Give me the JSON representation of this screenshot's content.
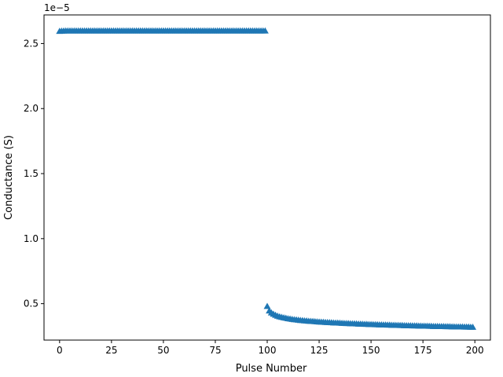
{
  "chart_data": {
    "type": "scatter",
    "title": "",
    "xlabel": "Pulse Number",
    "ylabel": "Conductance (S)",
    "y_offset_label": "1e−5",
    "y_scale_exponent": -5,
    "xlim": [
      -7.5,
      207.5
    ],
    "ylim": [
      2.2e-06,
      2.72e-05
    ],
    "xticks": [
      0,
      25,
      50,
      75,
      100,
      125,
      150,
      175,
      200
    ],
    "xtick_labels": [
      "0",
      "25",
      "50",
      "75",
      "100",
      "125",
      "150",
      "175",
      "200"
    ],
    "yticks": [
      5e-06,
      1e-05,
      1.5e-05,
      2e-05,
      2.5e-05
    ],
    "ytick_labels": [
      "0.5",
      "1.0",
      "1.5",
      "2.0",
      "2.5"
    ],
    "grid": false,
    "legend": "none",
    "marker": "triangle-up",
    "series": [
      {
        "name": "",
        "color": "#1f77b4",
        "potentiation": {
          "x_start": 0,
          "x_end": 99,
          "values": [
            2.595e-05,
            2.596e-05,
            2.597e-05,
            2.598e-05,
            2.598e-05,
            2.598e-05,
            2.598e-05,
            2.598e-05,
            2.598e-05,
            2.598e-05
          ],
          "plateau": 2.598e-05
        },
        "depression": {
          "x_start": 100,
          "x_end": 199,
          "values": [
            4.8e-06,
            4.45e-06,
            4.3e-06,
            4.2e-06,
            4.12e-06,
            4.05e-06,
            4e-06,
            3.96e-06,
            3.92e-06,
            3.89e-06,
            3.85e-06,
            3.83e-06,
            3.8e-06,
            3.78e-06,
            3.76e-06,
            3.74e-06,
            3.72e-06,
            3.71e-06,
            3.69e-06,
            3.68e-06,
            3.66e-06,
            3.65e-06,
            3.64e-06,
            3.63e-06,
            3.61e-06,
            3.6e-06,
            3.59e-06,
            3.58e-06,
            3.57e-06,
            3.56e-06,
            3.55e-06,
            3.54e-06,
            3.53e-06,
            3.52e-06,
            3.52e-06,
            3.51e-06,
            3.5e-06,
            3.49e-06,
            3.48e-06,
            3.48e-06,
            3.47e-06,
            3.46e-06,
            3.46e-06,
            3.45e-06,
            3.44e-06,
            3.44e-06,
            3.43e-06,
            3.42e-06,
            3.42e-06,
            3.41e-06,
            3.41e-06,
            3.4e-06,
            3.39e-06,
            3.39e-06,
            3.38e-06,
            3.38e-06,
            3.37e-06,
            3.37e-06,
            3.36e-06,
            3.36e-06,
            3.35e-06,
            3.35e-06,
            3.34e-06,
            3.34e-06,
            3.33e-06,
            3.33e-06,
            3.32e-06,
            3.32e-06,
            3.31e-06,
            3.31e-06,
            3.3e-06,
            3.3e-06,
            3.3e-06,
            3.29e-06,
            3.29e-06,
            3.28e-06,
            3.28e-06,
            3.28e-06,
            3.27e-06,
            3.27e-06,
            3.26e-06,
            3.26e-06,
            3.26e-06,
            3.25e-06,
            3.25e-06,
            3.25e-06,
            3.24e-06,
            3.24e-06,
            3.24e-06,
            3.23e-06,
            3.23e-06,
            3.22e-06,
            3.22e-06,
            3.22e-06,
            3.22e-06,
            3.21e-06,
            3.21e-06,
            3.21e-06,
            3.2e-06,
            3.2e-06
          ]
        }
      }
    ]
  }
}
